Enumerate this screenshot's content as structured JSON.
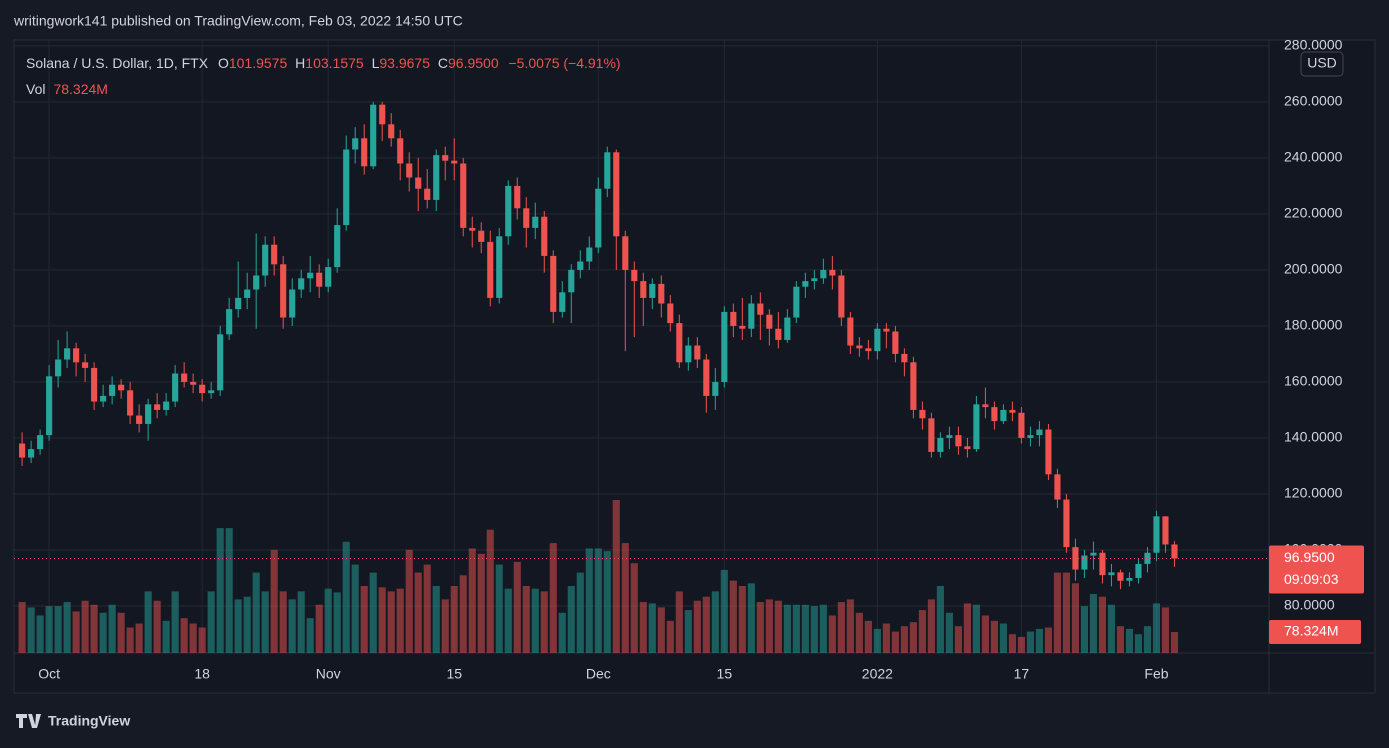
{
  "publisher_line": "writingwork141 published on TradingView.com, Feb 03, 2022 14:50 UTC",
  "footer_brand": "TradingView",
  "chart_data": {
    "type": "candlestick",
    "symbol": "Solana / U.S. Dollar, 1D, FTX",
    "legend": {
      "o": "O",
      "h": "H",
      "l": "L",
      "c": "C",
      "change": "−5.0075 (−4.91%)",
      "vol": "Vol"
    },
    "currency": "USD",
    "last_close_label": "96.9500",
    "countdown": "09:09:03",
    "last_volume_label": "78.324M",
    "up_color": "#26a69a",
    "down_color": "#ef5350",
    "xlim": [
      -0.9,
      138.5
    ],
    "xticks": [
      {
        "value": 3,
        "label": "Oct"
      },
      {
        "value": 20,
        "label": "18"
      },
      {
        "value": 34,
        "label": "Nov"
      },
      {
        "value": 48,
        "label": "15"
      },
      {
        "value": 64,
        "label": "Dec"
      },
      {
        "value": 78,
        "label": "15"
      },
      {
        "value": 95,
        "label": "2022"
      },
      {
        "value": 111,
        "label": "17"
      },
      {
        "value": 126,
        "label": "Feb"
      }
    ],
    "ylim": [
      63.2,
      282.1
    ],
    "yticks": [
      {
        "value": 80,
        "label": "80.0000"
      },
      {
        "value": 100,
        "label": "100.0000"
      },
      {
        "value": 120,
        "label": "120.0000"
      },
      {
        "value": 140,
        "label": "140.0000"
      },
      {
        "value": 160,
        "label": "160.0000"
      },
      {
        "value": 180,
        "label": "180.0000"
      },
      {
        "value": 200,
        "label": "200.0000"
      },
      {
        "value": 220,
        "label": "220.0000"
      },
      {
        "value": 240,
        "label": "240.0000"
      },
      {
        "value": 260,
        "label": "260.0000"
      },
      {
        "value": 280,
        "label": "280.0000"
      }
    ],
    "vlim": [
      0,
      2287
    ],
    "grid": true,
    "open": [
      138,
      133,
      136,
      141,
      162,
      168,
      172,
      167,
      165,
      153,
      155,
      159,
      157,
      148,
      145,
      152,
      150,
      153,
      163,
      160,
      159,
      156,
      157,
      177,
      186,
      190,
      193,
      198,
      209,
      202,
      183,
      193,
      197,
      199,
      194,
      201,
      216,
      243,
      247,
      237,
      259,
      252,
      247,
      238,
      233,
      229,
      225,
      241,
      239,
      238,
      215,
      214,
      210,
      190,
      212,
      230,
      222,
      215,
      219,
      205,
      185,
      192,
      200,
      203,
      208,
      229,
      242,
      212,
      200,
      196,
      190,
      195,
      188,
      181,
      167,
      173,
      168,
      155,
      160,
      185,
      180,
      179,
      188,
      184,
      179,
      175,
      183,
      194,
      196,
      197,
      200,
      198,
      183,
      173,
      172,
      171,
      179,
      178,
      170,
      167,
      150,
      147,
      135,
      140,
      141,
      137,
      136,
      152,
      151,
      146,
      150,
      149,
      140,
      141,
      143,
      127,
      118,
      101,
      93,
      98,
      99,
      91,
      92,
      89,
      90,
      95,
      99,
      112,
      101.9575
    ],
    "high": [
      142,
      139,
      143,
      166,
      175,
      178,
      174,
      170,
      167,
      159,
      162,
      161,
      160,
      152,
      154,
      156,
      156,
      166,
      167,
      163,
      161,
      160,
      180,
      190,
      203,
      199,
      213,
      212,
      212,
      205,
      197,
      200,
      205,
      202,
      204,
      222,
      248,
      251,
      252,
      260,
      260,
      256,
      250,
      242,
      240,
      236,
      243,
      244,
      247,
      240,
      219,
      217,
      214,
      215,
      232,
      233,
      226,
      224,
      221,
      207,
      196,
      202,
      207,
      212,
      233,
      244,
      243,
      214,
      203,
      199,
      197,
      198,
      191,
      184,
      176,
      176,
      170,
      165,
      187,
      188,
      190,
      191,
      192,
      186,
      185,
      186,
      196,
      199,
      200,
      204,
      205,
      200,
      185,
      176,
      175,
      181,
      181,
      180,
      172,
      169,
      153,
      149,
      142,
      144,
      144,
      140,
      155,
      158,
      153,
      152,
      153,
      151,
      144,
      146,
      145,
      129,
      120,
      104,
      100,
      103,
      100,
      95,
      93,
      92,
      97,
      101,
      114,
      112,
      103.1575
    ],
    "low": [
      130,
      131,
      134,
      139,
      158,
      165,
      162,
      160,
      150,
      151,
      152,
      154,
      145,
      142,
      139,
      147,
      148,
      151,
      158,
      156,
      153,
      154,
      155,
      175,
      183,
      186,
      179,
      194,
      198,
      179,
      180,
      190,
      192,
      190,
      192,
      199,
      214,
      238,
      234,
      236,
      246,
      244,
      232,
      228,
      221,
      222,
      221,
      232,
      232,
      212,
      208,
      206,
      187,
      188,
      209,
      218,
      208,
      211,
      199,
      181,
      183,
      181,
      197,
      200,
      206,
      226,
      200,
      171,
      176,
      180,
      186,
      183,
      178,
      165,
      164,
      165,
      149,
      150,
      158,
      176,
      175,
      176,
      175,
      173,
      172,
      174,
      181,
      190,
      193,
      195,
      193,
      180,
      170,
      169,
      168,
      168,
      172,
      167,
      162,
      147,
      143,
      133,
      133,
      136,
      134,
      133,
      135,
      147,
      143,
      145,
      146,
      138,
      137,
      137,
      125,
      115,
      99,
      89,
      90,
      93,
      88,
      87,
      86,
      87,
      88,
      92,
      96,
      99,
      93.9675
    ],
    "close": [
      133,
      136,
      141,
      162,
      168,
      172,
      167,
      165,
      153,
      155,
      159,
      157,
      148,
      145,
      152,
      150,
      153,
      163,
      160,
      159,
      156,
      157,
      177,
      186,
      190,
      193,
      198,
      209,
      202,
      183,
      193,
      197,
      199,
      194,
      201,
      216,
      243,
      247,
      237,
      259,
      252,
      247,
      238,
      233,
      229,
      225,
      241,
      239,
      238,
      215,
      214,
      210,
      190,
      212,
      230,
      222,
      215,
      219,
      205,
      185,
      192,
      200,
      203,
      208,
      229,
      242,
      212,
      200,
      196,
      190,
      195,
      188,
      181,
      167,
      173,
      168,
      155,
      160,
      185,
      180,
      179,
      188,
      184,
      179,
      175,
      183,
      194,
      196,
      197,
      200,
      198,
      183,
      173,
      172,
      171,
      179,
      178,
      170,
      167,
      150,
      147,
      135,
      140,
      141,
      137,
      136,
      152,
      151,
      146,
      150,
      149,
      140,
      141,
      143,
      127,
      118,
      101,
      93,
      98,
      99,
      91,
      92,
      89,
      90,
      95,
      99,
      112,
      101.9575,
      96.95
    ],
    "volume": [
      190,
      170,
      140,
      175,
      175,
      190,
      155,
      195,
      180,
      150,
      180,
      150,
      95,
      110,
      230,
      195,
      120,
      230,
      130,
      110,
      95,
      230,
      466,
      466,
      200,
      210,
      300,
      230,
      385,
      230,
      200,
      230,
      130,
      180,
      240,
      226,
      415,
      330,
      250,
      300,
      245,
      230,
      240,
      385,
      300,
      330,
      250,
      200,
      250,
      290,
      390,
      370,
      460,
      330,
      240,
      340,
      250,
      240,
      230,
      410,
      150,
      250,
      300,
      390,
      390,
      380,
      571,
      410,
      335,
      190,
      185,
      170,
      120,
      230,
      160,
      195,
      210,
      230,
      310,
      270,
      250,
      260,
      190,
      200,
      195,
      180,
      180,
      180,
      175,
      180,
      140,
      190,
      200,
      150,
      120,
      90,
      110,
      80,
      100,
      115,
      160,
      200,
      250,
      150,
      100,
      185,
      180,
      140,
      120,
      110,
      70,
      60,
      80,
      90,
      95,
      300,
      300,
      260,
      175,
      220,
      210,
      180,
      100,
      90,
      70,
      100,
      185,
      170,
      78.324
    ]
  }
}
